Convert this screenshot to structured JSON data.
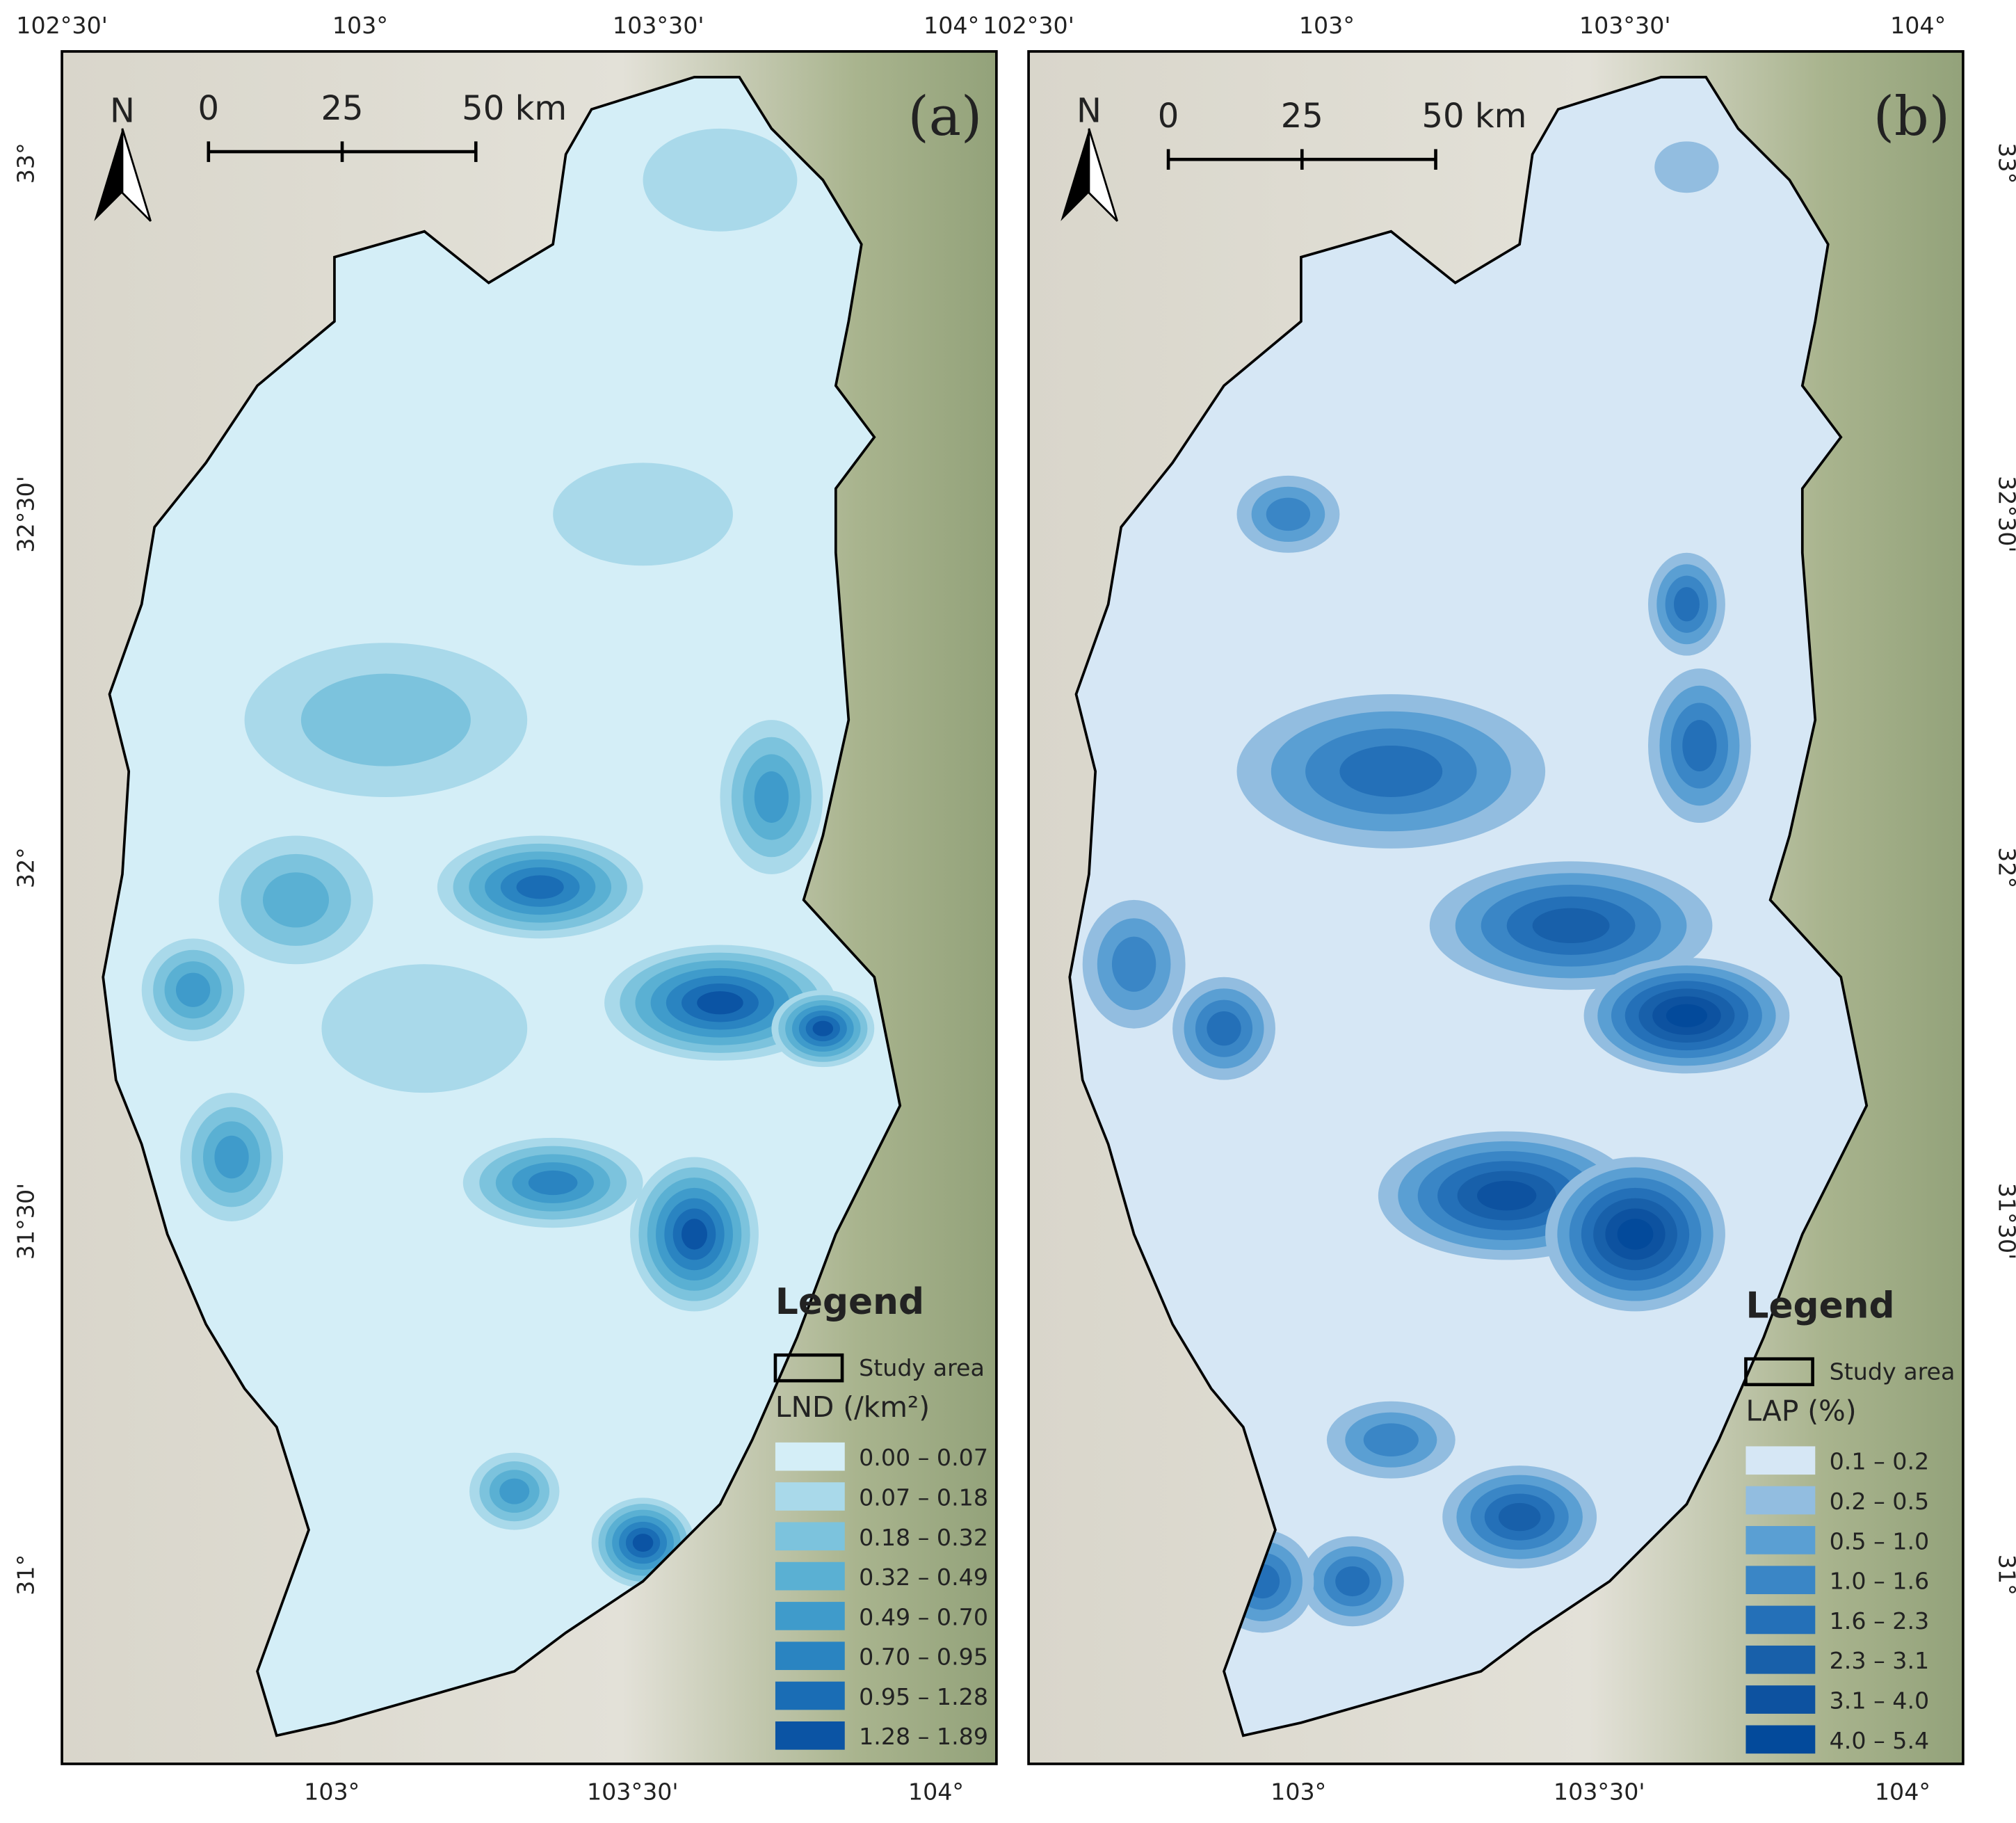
{
  "panels": [
    {
      "label": "(a)",
      "top_ticks": [
        "102°30'",
        "103°",
        "103°30'",
        "104°"
      ],
      "bottom_ticks": [
        "103°",
        "103°30'",
        "104°"
      ],
      "side_ticks": [
        "33°",
        "32°30'",
        "32°",
        "31°30'",
        "31°"
      ],
      "north": "N",
      "scale_labels": [
        "0",
        "25",
        "50 km"
      ],
      "legend": {
        "title": "Legend",
        "study_area": "Study area",
        "variable": "LND (/km²)",
        "classes": [
          {
            "label": "0.00 – 0.07",
            "color": "#d4eef7"
          },
          {
            "label": "0.07 – 0.18",
            "color": "#a9d9ea"
          },
          {
            "label": "0.18 – 0.32",
            "color": "#7cc3dd"
          },
          {
            "label": "0.32 – 0.49",
            "color": "#5ab0d3"
          },
          {
            "label": "0.49 – 0.70",
            "color": "#3f9bcb"
          },
          {
            "label": "0.70 – 0.95",
            "color": "#2a84c1"
          },
          {
            "label": "0.95 – 1.28",
            "color": "#1a6db5"
          },
          {
            "label": "1.28 – 1.89",
            "color": "#0b54a4"
          }
        ]
      }
    },
    {
      "label": "(b)",
      "top_ticks": [
        "102°30'",
        "103°",
        "103°30'",
        "104°"
      ],
      "bottom_ticks": [
        "103°",
        "103°30'",
        "104°"
      ],
      "side_ticks": [
        "33°",
        "32°30'",
        "32°",
        "31°30'",
        "31°"
      ],
      "north": "N",
      "scale_labels": [
        "0",
        "25",
        "50 km"
      ],
      "legend": {
        "title": "Legend",
        "study_area": "Study area",
        "variable": "LAP (%)",
        "classes": [
          {
            "label": "0.1 – 0.2",
            "color": "#d6e7f5"
          },
          {
            "label": "0.2 – 0.5",
            "color": "#92bde0"
          },
          {
            "label": "0.5 – 1.0",
            "color": "#5a9fd3"
          },
          {
            "label": "1.0 – 1.6",
            "color": "#3a86c6"
          },
          {
            "label": "1.6 – 2.3",
            "color": "#2470b8"
          },
          {
            "label": "2.3 – 3.1",
            "color": "#1860aa"
          },
          {
            "label": "3.1 – 4.0",
            "color": "#0d52a0"
          },
          {
            "label": "4.0 – 5.4",
            "color": "#034a9b"
          }
        ]
      }
    }
  ]
}
